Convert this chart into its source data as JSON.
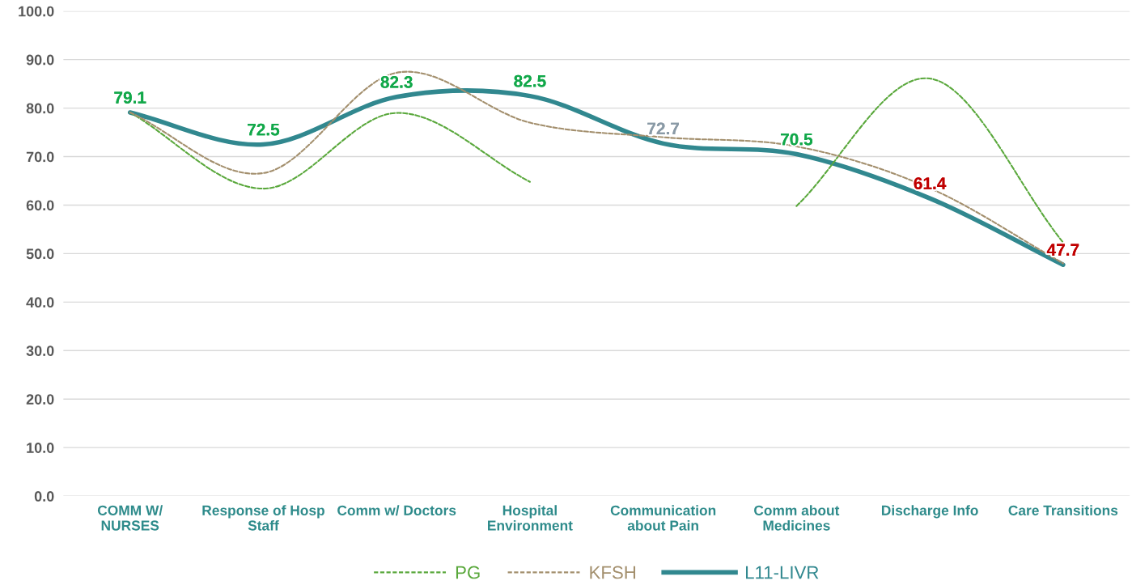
{
  "chart_data": {
    "type": "line",
    "categories": [
      "COMM W/\nNURSES",
      "Response of Hosp\nStaff",
      "Comm w/ Doctors",
      "Hospital\nEnvironment",
      "Communication\nabout Pain",
      "Comm about\nMedicines",
      "Discharge Info",
      "Care Transitions"
    ],
    "series": [
      {
        "name": "PG",
        "color": "#5aa83c",
        "line_style": "dashed",
        "values": [
          79.1,
          63.4,
          79.0,
          64.8,
          null,
          59.8,
          86.1,
          52.3
        ]
      },
      {
        "name": "KFSH",
        "color": "#a38f6d",
        "line_style": "dashed",
        "values": [
          79.1,
          66.6,
          87.3,
          77.0,
          74.0,
          72.1,
          63.5,
          48.0
        ]
      },
      {
        "name": "L11-LIVR",
        "color": "#31888f",
        "line_style": "solid",
        "values": [
          79.1,
          72.5,
          82.3,
          82.5,
          72.7,
          70.5,
          61.4,
          47.7
        ],
        "value_labels": [
          "79.1",
          "72.5",
          "82.3",
          "82.5",
          "72.7",
          "70.5",
          "61.4",
          "47.7"
        ],
        "colors": [
          "#12a84a",
          "#12a84a",
          "#12a84a",
          "#12a84a",
          "#8a9aa6",
          "#12a84a",
          "#c00000",
          "#c00000"
        ]
      }
    ],
    "ylim": [
      0,
      100
    ],
    "yticks": [
      {
        "value": 0,
        "label": "0.0"
      },
      {
        "value": 10,
        "label": "10.0"
      },
      {
        "value": 20,
        "label": "20.0"
      },
      {
        "value": 30,
        "label": "30.0"
      },
      {
        "value": 40,
        "label": "40.0"
      },
      {
        "value": 50,
        "label": "50.0"
      },
      {
        "value": 60,
        "label": "60.0"
      },
      {
        "value": 70,
        "label": "70.0"
      },
      {
        "value": 80,
        "label": "80.0"
      },
      {
        "value": 90,
        "label": "90.0"
      },
      {
        "value": 100,
        "label": "100.0"
      }
    ],
    "grid": "y",
    "legend": "bottom"
  }
}
